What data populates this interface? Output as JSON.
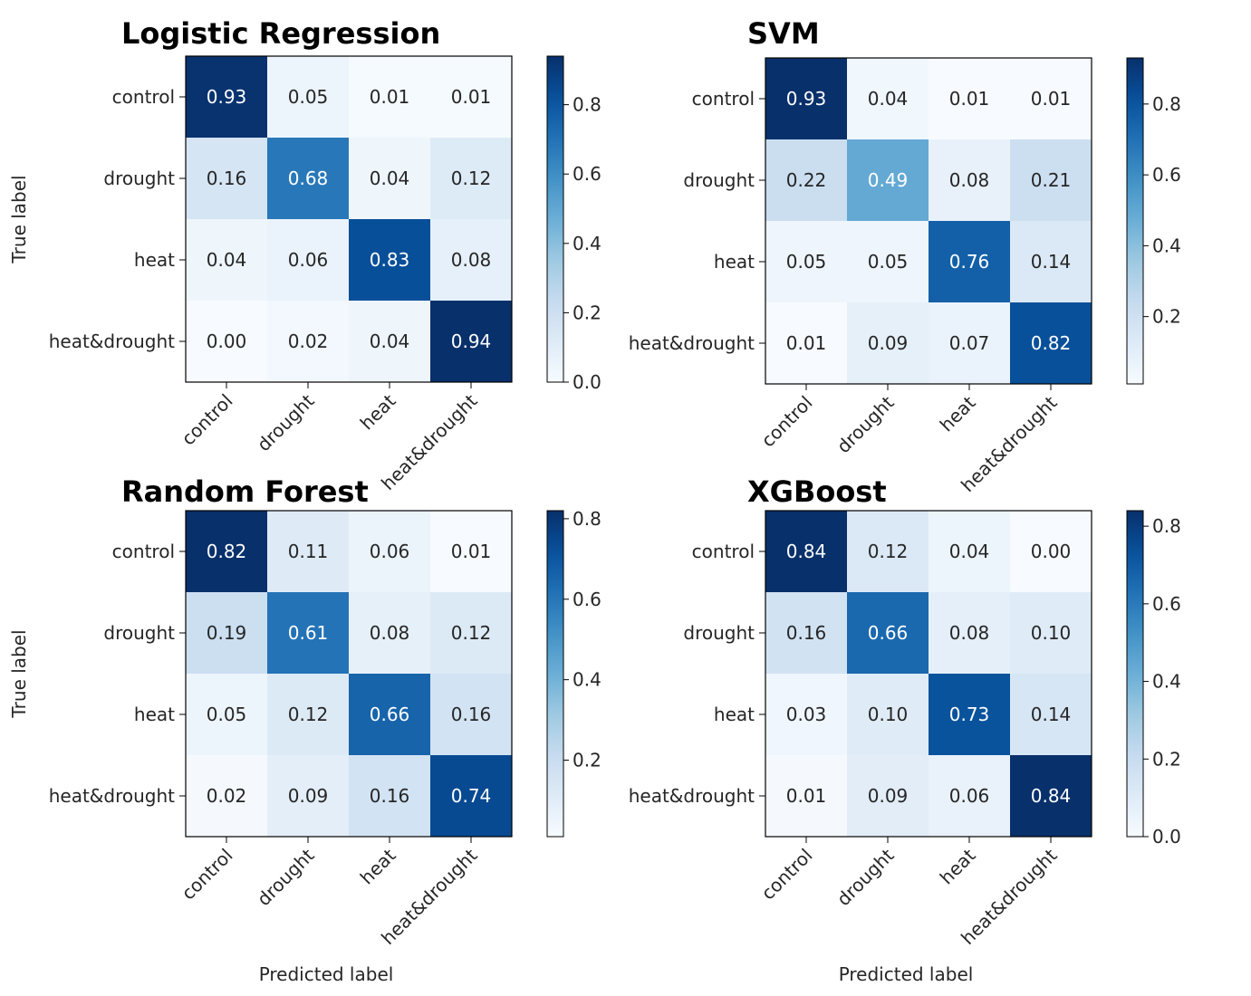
{
  "chart_data": [
    {
      "type": "heatmap",
      "title": "Logistic Regression",
      "xlabel": "",
      "ylabel": "True label",
      "x_categories": [
        "control",
        "drought",
        "heat",
        "heat&drought"
      ],
      "y_categories": [
        "control",
        "drought",
        "heat",
        "heat&drought"
      ],
      "values": [
        [
          0.93,
          0.05,
          0.01,
          0.01
        ],
        [
          0.16,
          0.68,
          0.04,
          0.12
        ],
        [
          0.04,
          0.06,
          0.83,
          0.08
        ],
        [
          0.0,
          0.02,
          0.04,
          0.94
        ]
      ],
      "cells": [
        [
          "0.93",
          "0.05",
          "0.01",
          "0.01"
        ],
        [
          "0.16",
          "0.68",
          "0.04",
          "0.12"
        ],
        [
          "0.04",
          "0.06",
          "0.83",
          "0.08"
        ],
        [
          "0.00",
          "0.02",
          "0.04",
          "0.94"
        ]
      ],
      "colorbar": {
        "range": [
          0.0,
          0.94
        ],
        "ticks": [
          0.0,
          0.2,
          0.4,
          0.6,
          0.8
        ],
        "tick_labels": [
          "0.0",
          "0.2",
          "0.4",
          "0.6",
          "0.8"
        ]
      }
    },
    {
      "type": "heatmap",
      "title": "SVM",
      "xlabel": "",
      "ylabel": "",
      "x_categories": [
        "control",
        "drought",
        "heat",
        "heat&drought"
      ],
      "y_categories": [
        "control",
        "drought",
        "heat",
        "heat&drought"
      ],
      "values": [
        [
          0.93,
          0.04,
          0.01,
          0.01
        ],
        [
          0.22,
          0.49,
          0.08,
          0.21
        ],
        [
          0.05,
          0.05,
          0.76,
          0.14
        ],
        [
          0.01,
          0.09,
          0.07,
          0.82
        ]
      ],
      "cells": [
        [
          "0.93",
          "0.04",
          "0.01",
          "0.01"
        ],
        [
          "0.22",
          "0.49",
          "0.08",
          "0.21"
        ],
        [
          "0.05",
          "0.05",
          "0.76",
          "0.14"
        ],
        [
          "0.01",
          "0.09",
          "0.07",
          "0.82"
        ]
      ],
      "colorbar": {
        "range": [
          0.01,
          0.93
        ],
        "ticks": [
          0.2,
          0.4,
          0.6,
          0.8
        ],
        "tick_labels": [
          "0.2",
          "0.4",
          "0.6",
          "0.8"
        ]
      }
    },
    {
      "type": "heatmap",
      "title": "Random Forest",
      "xlabel": "Predicted label",
      "ylabel": "True label",
      "x_categories": [
        "control",
        "drought",
        "heat",
        "heat&drought"
      ],
      "y_categories": [
        "control",
        "drought",
        "heat",
        "heat&drought"
      ],
      "values": [
        [
          0.82,
          0.11,
          0.06,
          0.01
        ],
        [
          0.19,
          0.61,
          0.08,
          0.12
        ],
        [
          0.05,
          0.12,
          0.66,
          0.16
        ],
        [
          0.02,
          0.09,
          0.16,
          0.74
        ]
      ],
      "cells": [
        [
          "0.82",
          "0.11",
          "0.06",
          "0.01"
        ],
        [
          "0.19",
          "0.61",
          "0.08",
          "0.12"
        ],
        [
          "0.05",
          "0.12",
          "0.66",
          "0.16"
        ],
        [
          "0.02",
          "0.09",
          "0.16",
          "0.74"
        ]
      ],
      "colorbar": {
        "range": [
          0.01,
          0.82
        ],
        "ticks": [
          0.2,
          0.4,
          0.6,
          0.8
        ],
        "tick_labels": [
          "0.2",
          "0.4",
          "0.6",
          "0.8"
        ]
      }
    },
    {
      "type": "heatmap",
      "title": "XGBoost",
      "xlabel": "Predicted label",
      "ylabel": "",
      "x_categories": [
        "control",
        "drought",
        "heat",
        "heat&drought"
      ],
      "y_categories": [
        "control",
        "drought",
        "heat",
        "heat&drought"
      ],
      "values": [
        [
          0.84,
          0.12,
          0.04,
          0.0
        ],
        [
          0.16,
          0.66,
          0.08,
          0.1
        ],
        [
          0.03,
          0.1,
          0.73,
          0.14
        ],
        [
          0.01,
          0.09,
          0.06,
          0.84
        ]
      ],
      "cells": [
        [
          "0.84",
          "0.12",
          "0.04",
          "0.00"
        ],
        [
          "0.16",
          "0.66",
          "0.08",
          "0.10"
        ],
        [
          "0.03",
          "0.10",
          "0.73",
          "0.14"
        ],
        [
          "0.01",
          "0.09",
          "0.06",
          "0.84"
        ]
      ],
      "colorbar": {
        "range": [
          0.0,
          0.84
        ],
        "ticks": [
          0.0,
          0.2,
          0.4,
          0.6,
          0.8
        ],
        "tick_labels": [
          "0.0",
          "0.2",
          "0.4",
          "0.6",
          "0.8"
        ]
      }
    }
  ],
  "colors": {
    "colormap": "Blues",
    "text_dark": "#262626",
    "text_light": "#ffffff",
    "frame": "#000000"
  }
}
